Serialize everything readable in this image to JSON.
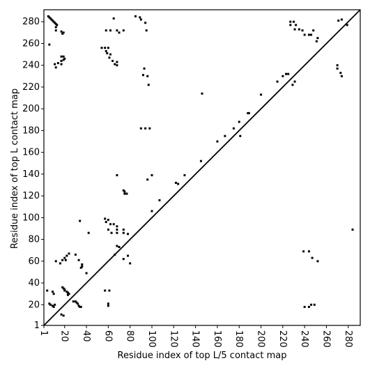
{
  "chart_data": {
    "type": "scatter",
    "x_label": "Residue index of top L/5 contact map",
    "y_label": "Residue index of top L contact map",
    "xlim": [
      1,
      291
    ],
    "ylim": [
      1,
      291
    ],
    "xticks": [
      1,
      20,
      40,
      60,
      80,
      100,
      120,
      140,
      160,
      180,
      200,
      220,
      240,
      260,
      280
    ],
    "yticks": [
      1,
      20,
      40,
      60,
      80,
      100,
      120,
      140,
      160,
      180,
      200,
      220,
      240,
      260,
      280
    ],
    "color": "#000000",
    "x": [
      5,
      6,
      7,
      8,
      9,
      10,
      11,
      12,
      13,
      6,
      12,
      12,
      17,
      18,
      19,
      17,
      19,
      20,
      17,
      19,
      17,
      11,
      12,
      14,
      54,
      57,
      60,
      58,
      59,
      62,
      61,
      64,
      66,
      68,
      68,
      58,
      62,
      68,
      70,
      74,
      65,
      85,
      89,
      90,
      94,
      95,
      93,
      92,
      96,
      97,
      146,
      90,
      94,
      98,
      175,
      181,
      180,
      188,
      189,
      200,
      215,
      220,
      223,
      225,
      229,
      231,
      227,
      227,
      230,
      232,
      231,
      235,
      238,
      240,
      244,
      246,
      248,
      251,
      252,
      271,
      274,
      279,
      270,
      270,
      273,
      274,
      284,
      68,
      74,
      75,
      77,
      75,
      100,
      96,
      107,
      122,
      124,
      130,
      145,
      160,
      167,
      57,
      58,
      60,
      62,
      65,
      68,
      60,
      63,
      68,
      68,
      74,
      74,
      78,
      68,
      66,
      70,
      74,
      78,
      80,
      100,
      42,
      34,
      57,
      61,
      60,
      60,
      4,
      9,
      10,
      6,
      7,
      9,
      10,
      11,
      18,
      19,
      20,
      20,
      22,
      23,
      24,
      23,
      17,
      19,
      28,
      30,
      31,
      32,
      33,
      34,
      35,
      12,
      16,
      18,
      21,
      20,
      22,
      24,
      30,
      33,
      36,
      36,
      35,
      40,
      240,
      244,
      246,
      249,
      239,
      244,
      247,
      252
    ],
    "y": [
      285,
      284,
      283,
      282,
      281,
      280,
      279,
      278,
      277,
      259,
      275,
      272,
      271,
      269,
      270,
      248,
      248,
      246,
      244,
      245,
      241,
      241,
      238,
      242,
      256,
      256,
      256,
      253,
      251,
      250,
      247,
      244,
      241,
      243,
      240,
      272,
      272,
      272,
      270,
      272,
      283,
      285,
      284,
      282,
      279,
      272,
      237,
      231,
      230,
      222,
      214,
      182,
      182,
      182,
      182,
      175,
      188,
      196,
      196,
      213,
      225,
      230,
      232,
      232,
      222,
      225,
      277,
      280,
      280,
      277,
      273,
      273,
      272,
      268,
      268,
      268,
      272,
      262,
      265,
      281,
      282,
      277,
      240,
      237,
      233,
      230,
      89,
      139,
      125,
      122,
      122,
      124,
      139,
      135,
      116,
      132,
      131,
      139,
      152,
      170,
      175,
      99,
      96,
      98,
      94,
      94,
      92,
      89,
      86,
      86,
      89,
      89,
      86,
      85,
      74,
      66,
      73,
      62,
      65,
      58,
      106,
      86,
      97,
      33,
      33,
      21,
      19,
      33,
      32,
      30,
      21,
      20,
      19,
      18,
      20,
      36,
      35,
      34,
      33,
      32,
      31,
      30,
      29,
      11,
      10,
      23,
      23,
      22,
      21,
      19,
      18,
      18,
      60,
      58,
      61,
      61,
      63,
      65,
      67,
      66,
      61,
      57,
      55,
      54,
      49,
      18,
      18,
      20,
      20,
      69,
      69,
      63,
      60
    ]
  }
}
